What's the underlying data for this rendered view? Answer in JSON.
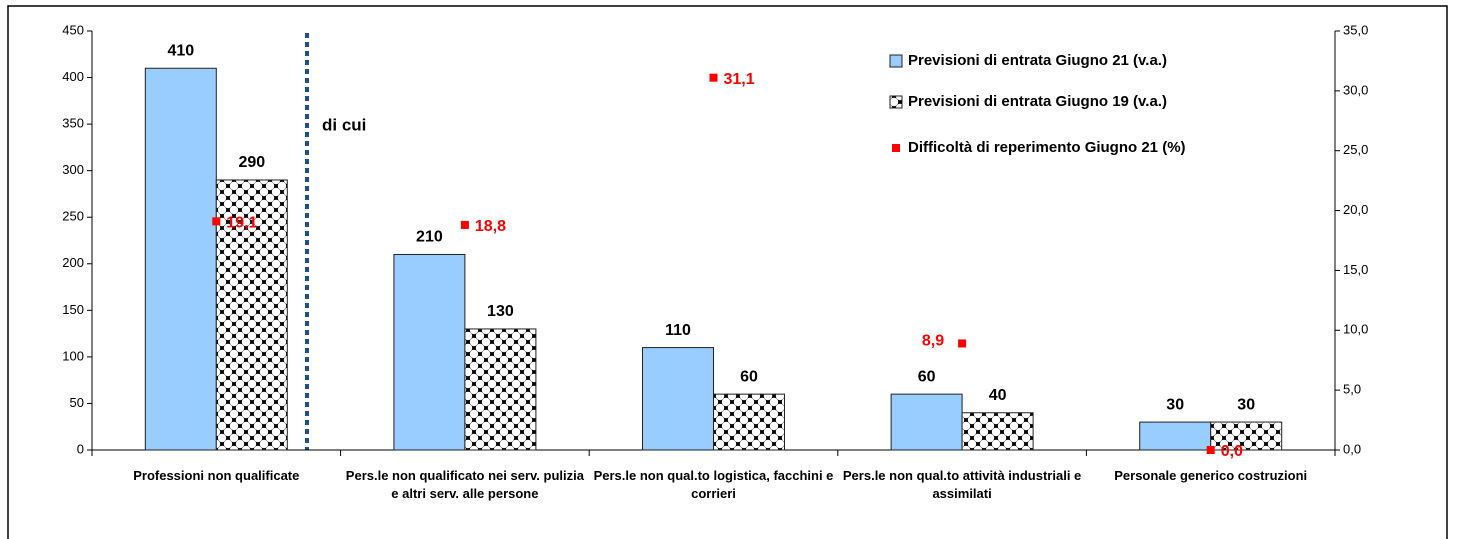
{
  "chart_data": {
    "type": "bar",
    "categories": [
      "Professioni non qualificate",
      "Pers.le non qualificato nei serv. pulizia e altri serv. alle persone",
      "Pers.le non qual.to logistica, facchini e corrieri",
      "Pers.le non qual.to attività industriali e assimilati",
      "Personale generico costruzioni"
    ],
    "series": [
      {
        "name": "Previsioni di entrata Giugno 21 (v.a.)",
        "type": "bar",
        "color": "#99ccff",
        "values": [
          410,
          210,
          110,
          60,
          30
        ]
      },
      {
        "name": "Previsioni di entrata Giugno 19 (v.a.)",
        "type": "bar",
        "color": "#000000",
        "values": [
          290,
          130,
          60,
          40,
          30
        ]
      },
      {
        "name": "Difficoltà di reperimento Giugno 21 (%)",
        "type": "scatter",
        "axis": "y2",
        "color": "#ff0000",
        "values": [
          19.1,
          18.8,
          31.1,
          8.9,
          0.0
        ],
        "value_labels": [
          "19,1",
          "18,8",
          "31,1",
          "8,9",
          "0,0"
        ]
      }
    ],
    "annotations": [
      "di cui"
    ],
    "ylim": [
      0,
      450
    ],
    "yticks": [
      0,
      50,
      100,
      150,
      200,
      250,
      300,
      350,
      400,
      450
    ],
    "y2lim": [
      0,
      35
    ],
    "y2ticks": [
      {
        "value": 0,
        "label": "0,0"
      },
      {
        "value": 5,
        "label": "5,0"
      },
      {
        "value": 10,
        "label": "10,0"
      },
      {
        "value": 15,
        "label": "15,0"
      },
      {
        "value": 20,
        "label": "20,0"
      },
      {
        "value": 25,
        "label": "25,0"
      },
      {
        "value": 30,
        "label": "30,0"
      },
      {
        "value": 35,
        "label": "35,0"
      }
    ],
    "legend": "top-right",
    "grid": false
  }
}
